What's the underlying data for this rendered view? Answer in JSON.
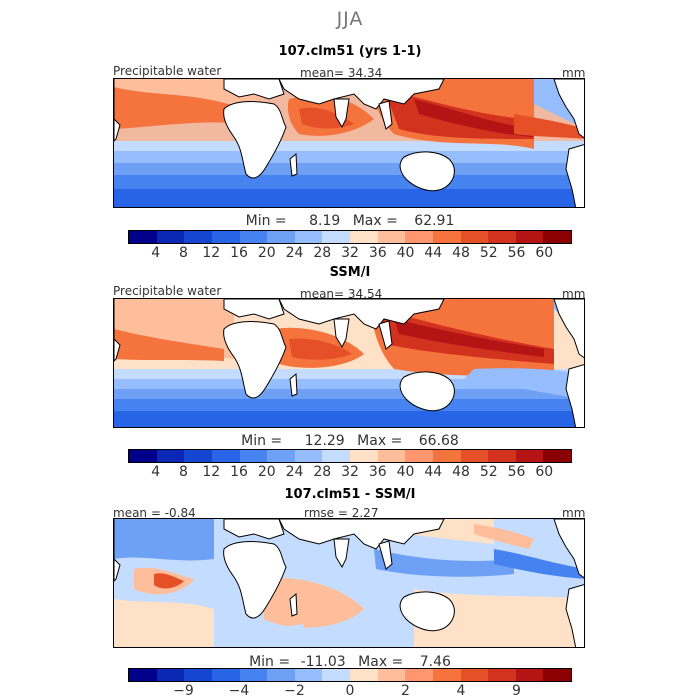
{
  "season": "JJA",
  "panels": [
    {
      "title": "107.clm51 (yrs 1-1)",
      "left_label": "Precipitable water",
      "center_label": "mean=  34.34",
      "units": "mm",
      "min_label": "Min =",
      "min_value": "8.19",
      "max_label": "Max =",
      "max_value": "62.91"
    },
    {
      "title": "SSM/I",
      "left_label": "Precipitable water",
      "center_label": "mean=  34.54",
      "units": "mm",
      "min_label": "Min =",
      "min_value": "12.29",
      "max_label": "Max =",
      "max_value": "66.68"
    },
    {
      "title": "107.clm51 - SSM/I",
      "left_label": "mean =   -0.84",
      "center_label": "rmse =    2.27",
      "units": "mm",
      "min_label": "Min =",
      "min_value": "-11.03",
      "max_label": "Max =",
      "max_value": "7.46"
    }
  ],
  "colorbars": {
    "absolute": {
      "colors": [
        "#00008b",
        "#0a28b4",
        "#1446d2",
        "#2864e6",
        "#4682f0",
        "#6ea0f5",
        "#96beff",
        "#c3dcff",
        "#ffe1c8",
        "#ffbe9b",
        "#ff9670",
        "#f5733c",
        "#e65028",
        "#d2321e",
        "#b41414",
        "#8b0000"
      ],
      "ticks": [
        "4",
        "8",
        "12",
        "16",
        "20",
        "24",
        "28",
        "32",
        "36",
        "40",
        "44",
        "48",
        "52",
        "56",
        "60"
      ]
    },
    "difference": {
      "colors": [
        "#00008b",
        "#0a28b4",
        "#1446d2",
        "#2864e6",
        "#4682f0",
        "#6ea0f5",
        "#96beff",
        "#c3dcff",
        "#ffe1c8",
        "#ffbe9b",
        "#ff9670",
        "#f5733c",
        "#e65028",
        "#d2321e",
        "#b41414",
        "#8b0000"
      ],
      "ticks": [
        "−9",
        "−4",
        "−2",
        "0",
        "2",
        "4",
        "9"
      ]
    }
  }
}
